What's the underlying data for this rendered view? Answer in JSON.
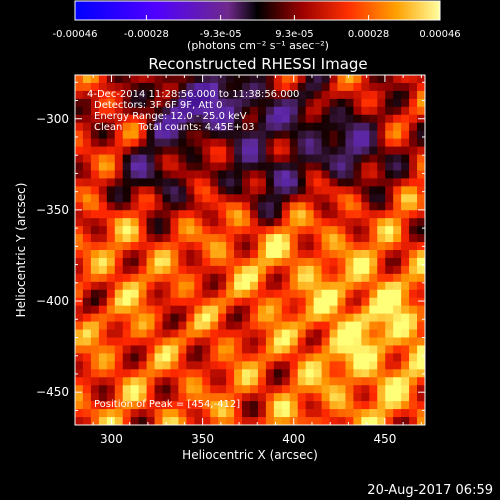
{
  "chart_data": {
    "type": "heatmap",
    "title": "Reconstructed RHESSI Image",
    "xlabel": "Heliocentric X (arcsec)",
    "ylabel": "Heliocentric Y (arcsec)",
    "xlim": [
      280,
      472
    ],
    "ylim": [
      -468,
      -276
    ],
    "x_ticks": [
      "300",
      "350",
      "400",
      "450"
    ],
    "y_ticks": [
      "-300",
      "-350",
      "-400",
      "-450"
    ],
    "colorbar": {
      "range": [
        -0.00046,
        0.00046
      ],
      "tick_labels": [
        "-0.00046",
        "-0.00028",
        "-9.3e-05",
        "9.3e-05",
        "0.00028",
        "0.00046"
      ],
      "unit_label": "(photons cm⁻² s⁻¹ asec⁻²)"
    },
    "annotations": [
      "4-Dec-2014 11:28:56.000 to 11:38:56.000",
      "Detectors: 3F 6F 9F, Att 0",
      "Energy Range: 12.0 - 25.0 keV",
      "Clean     Total counts: 4.45E+03"
    ],
    "peak_label": "Position of Peak = [454,-412]",
    "timestamp": "20-Aug-2017 06:59",
    "colors": {
      "background": "#000000",
      "foreground": "#ffffff"
    }
  }
}
